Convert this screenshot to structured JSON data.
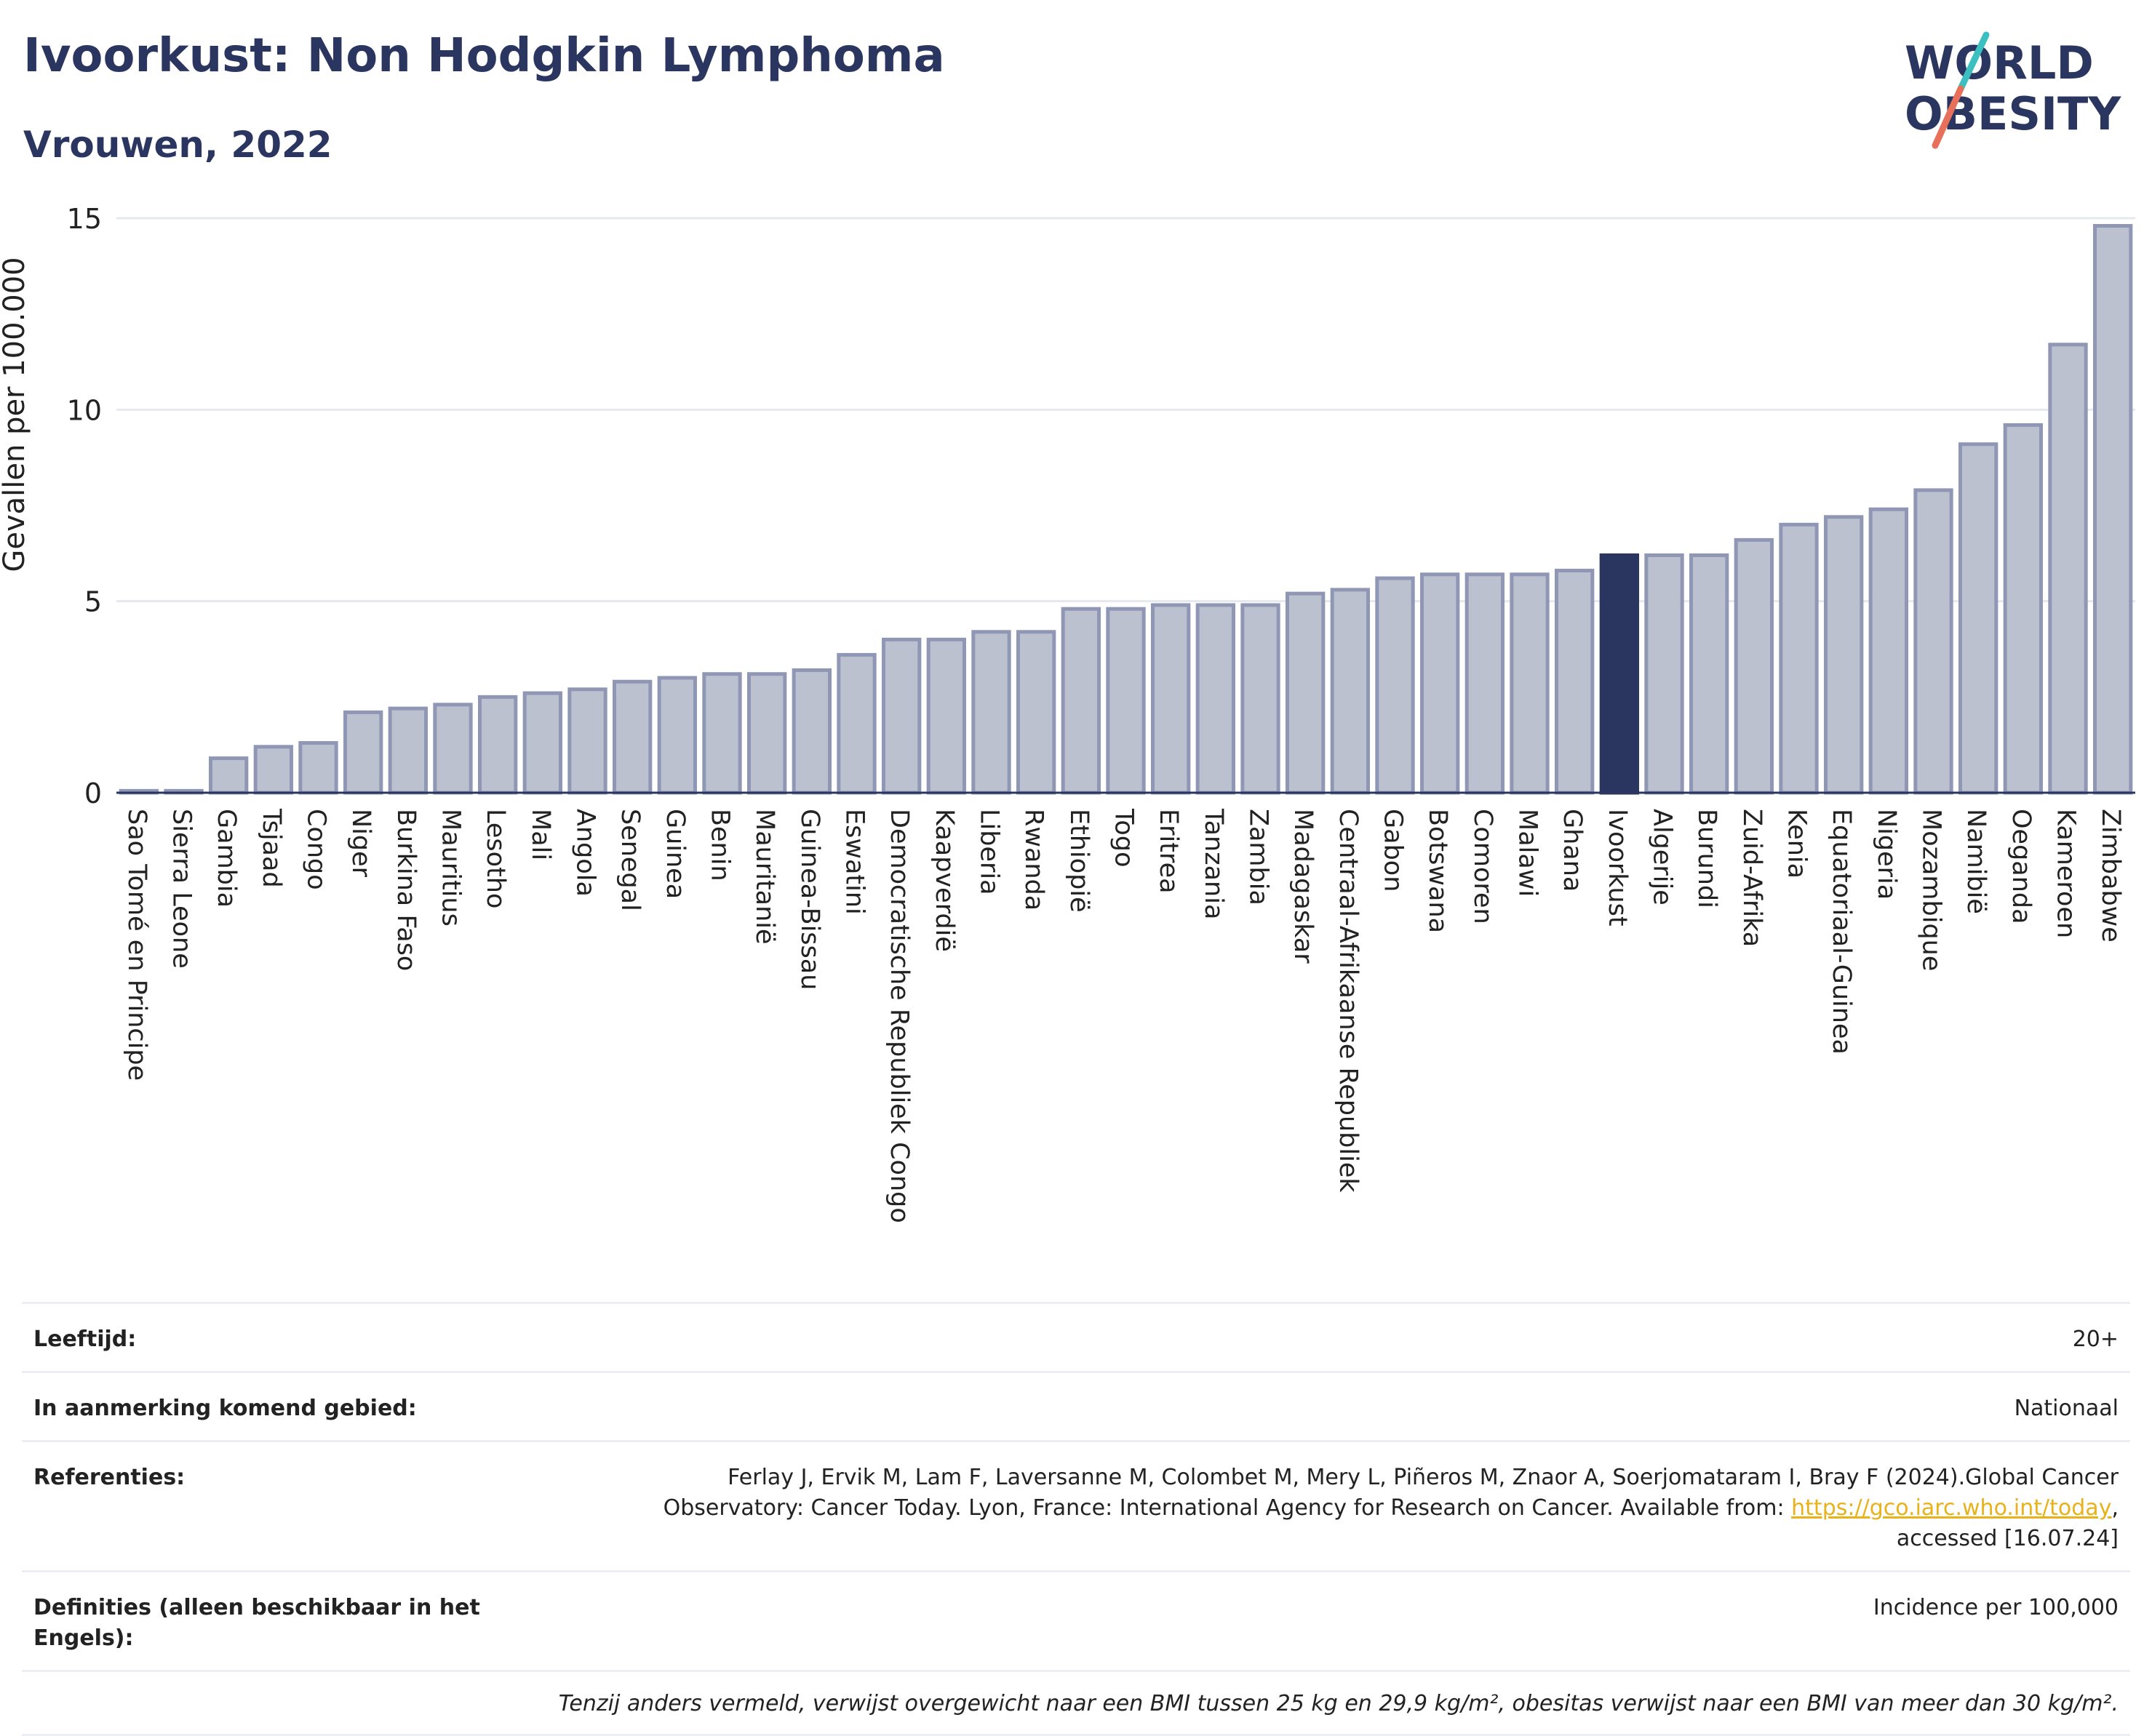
{
  "title": "Ivoorkust: Non Hodgkin Lymphoma",
  "subtitle": "Vrouwen, 2022",
  "logo": {
    "line1": "WORLD",
    "line2": "OBESITY"
  },
  "chart_data": {
    "type": "bar",
    "ylabel": "Gevallen per 100.000",
    "ylim": [
      0,
      15
    ],
    "yticks": [
      0,
      5,
      10,
      15
    ],
    "highlight": "Ivoorkust",
    "colors": {
      "bar": "#bcc1d0",
      "bar_edge": "#8f97b5",
      "highlight": "#2a3560",
      "grid": "#e6e8ef"
    },
    "categories": [
      "Sao Tomé en Principe",
      "Sierra Leone",
      "Gambia",
      "Tsjaad",
      "Congo",
      "Niger",
      "Burkina Faso",
      "Mauritius",
      "Lesotho",
      "Mali",
      "Angola",
      "Senegal",
      "Guinea",
      "Benin",
      "Mauritanië",
      "Guinea-Bissau",
      "Eswatini",
      "Democratische Republiek Congo",
      "Kaapverdië",
      "Liberia",
      "Rwanda",
      "Ethiopië",
      "Togo",
      "Eritrea",
      "Tanzania",
      "Zambia",
      "Madagaskar",
      "Centraal-Afrikaanse Republiek",
      "Gabon",
      "Botswana",
      "Comoren",
      "Malawi",
      "Ghana",
      "Ivoorkust",
      "Algerije",
      "Burundi",
      "Zuid-Afrika",
      "Kenia",
      "Equatoriaal-Guinea",
      "Nigeria",
      "Mozambique",
      "Namibië",
      "Oeganda",
      "Kameroen",
      "Zimbabwe"
    ],
    "values": [
      0.05,
      0.05,
      0.9,
      1.2,
      1.3,
      2.1,
      2.2,
      2.3,
      2.5,
      2.6,
      2.7,
      2.9,
      3.0,
      3.1,
      3.1,
      3.2,
      3.6,
      4.0,
      4.0,
      4.2,
      4.2,
      4.8,
      4.8,
      4.9,
      4.9,
      4.9,
      5.2,
      5.3,
      5.6,
      5.7,
      5.7,
      5.7,
      5.8,
      6.2,
      6.2,
      6.2,
      6.6,
      7.0,
      7.2,
      7.4,
      7.9,
      9.1,
      9.6,
      11.7,
      14.8
    ]
  },
  "info": {
    "age_label": "Leeftijd:",
    "age_value": "20+",
    "region_label": "In aanmerking komend gebied:",
    "region_value": "Nationaal",
    "ref_label": "Referenties:",
    "ref_text1": "Ferlay J, Ervik M, Lam F, Laversanne M, Colombet M, Mery L, Piñeros M, Znaor A, Soerjomataram I, Bray F (2024).Global Cancer Observatory: Cancer Today. Lyon, France: International Agency for Research on Cancer. Available from: ",
    "ref_link": "https://gco.iarc.who.int/today",
    "ref_text2": ", accessed [16.07.24]",
    "def_label": "Definities (alleen beschikbaar in het Engels):",
    "def_value": "Incidence per 100,000",
    "note": "Tenzij anders vermeld, verwijst overgewicht naar een BMI tussen 25 kg en 29,9 kg/m², obesitas verwijst naar een BMI van meer dan 30 kg/m²."
  }
}
